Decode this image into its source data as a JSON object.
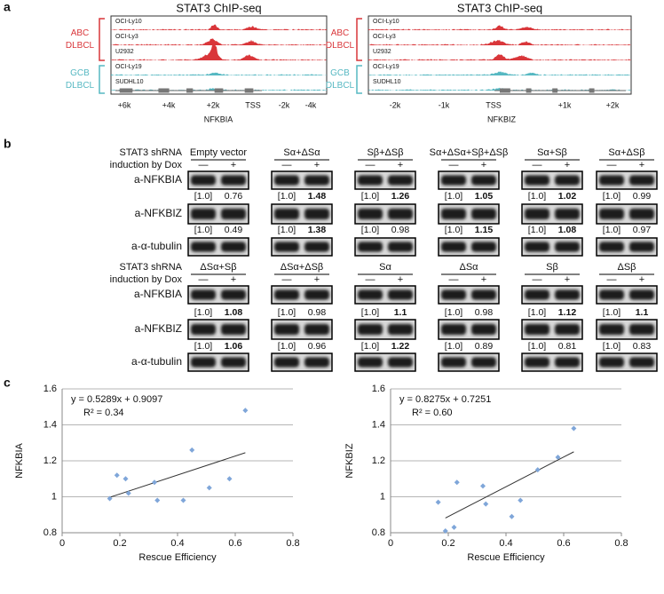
{
  "panel_labels": [
    "a",
    "b",
    "c"
  ],
  "chip_seq": [
    {
      "title": "STAT3 ChIP-seq",
      "tracks": [
        "OCI-Ly10",
        "OCI-Ly3",
        "U2932",
        "OCI-Ly19",
        "SUDHL10"
      ],
      "groups": [
        {
          "name": "ABC",
          "sub": "DLBCL"
        },
        {
          "name": "GCB",
          "sub": "DLBCL"
        }
      ],
      "axis_labels": [
        "+6k",
        "+4k",
        "+2k",
        "TSS",
        "-2k",
        "-4k"
      ],
      "gene": "NFKBIA"
    },
    {
      "title": "STAT3 ChIP-seq",
      "tracks": [
        "OCI-Ly10",
        "OCI-Ly3",
        "U2932",
        "OCI-Ly19",
        "SUDHL10"
      ],
      "groups": [
        {
          "name": "ABC",
          "sub": "DLBCL"
        },
        {
          "name": "GCB",
          "sub": "DLBCL"
        }
      ],
      "axis_labels": [
        "-2k",
        "-1k",
        "TSS",
        "+1k",
        "+2k"
      ],
      "gene": "NFKBIZ"
    }
  ],
  "western": {
    "row_header": [
      "STAT3 shRNA",
      "induction by Dox"
    ],
    "lanes": [
      "—",
      "+"
    ],
    "blocks": [
      {
        "groups": [
          "Empty vector",
          "Sα+ΔSα",
          "Sβ+ΔSβ",
          "Sα+ΔSα+Sβ+ΔSβ",
          "Sα+Sβ",
          "Sα+ΔSβ"
        ],
        "rows": [
          {
            "label": "a-NFKBIA",
            "values": [
              {
                "control": "[1.0]",
                "treated": "0.76",
                "bold": false
              },
              {
                "control": "[1.0]",
                "treated": "1.48",
                "bold": true
              },
              {
                "control": "[1.0]",
                "treated": "1.26",
                "bold": true
              },
              {
                "control": "[1.0]",
                "treated": "1.05",
                "bold": true
              },
              {
                "control": "[1.0]",
                "treated": "1.02",
                "bold": true
              },
              {
                "control": "[1.0]",
                "treated": "0.99",
                "bold": false
              }
            ]
          },
          {
            "label": "a-NFKBIZ",
            "values": [
              {
                "control": "[1.0]",
                "treated": "0.49",
                "bold": false
              },
              {
                "control": "[1.0]",
                "treated": "1.38",
                "bold": true
              },
              {
                "control": "[1.0]",
                "treated": "0.98",
                "bold": false
              },
              {
                "control": "[1.0]",
                "treated": "1.15",
                "bold": true
              },
              {
                "control": "[1.0]",
                "treated": "1.08",
                "bold": true
              },
              {
                "control": "[1.0]",
                "treated": "0.97",
                "bold": false
              }
            ]
          },
          {
            "label": "a-α-tubulin"
          }
        ]
      },
      {
        "groups": [
          "ΔSα+Sβ",
          "ΔSα+ΔSβ",
          "Sα",
          "ΔSα",
          "Sβ",
          "ΔSβ"
        ],
        "rows": [
          {
            "label": "a-NFKBIA",
            "values": [
              {
                "control": "[1.0]",
                "treated": "1.08",
                "bold": true
              },
              {
                "control": "[1.0]",
                "treated": "0.98",
                "bold": false
              },
              {
                "control": "[1.0]",
                "treated": "1.1",
                "bold": true
              },
              {
                "control": "[1.0]",
                "treated": "0.98",
                "bold": false
              },
              {
                "control": "[1.0]",
                "treated": "1.12",
                "bold": true
              },
              {
                "control": "[1.0]",
                "treated": "1.1",
                "bold": true
              }
            ]
          },
          {
            "label": "a-NFKBIZ",
            "values": [
              {
                "control": "[1.0]",
                "treated": "1.06",
                "bold": true
              },
              {
                "control": "[1.0]",
                "treated": "0.96",
                "bold": false
              },
              {
                "control": "[1.0]",
                "treated": "1.22",
                "bold": true
              },
              {
                "control": "[1.0]",
                "treated": "0.89",
                "bold": false
              },
              {
                "control": "[1.0]",
                "treated": "0.81",
                "bold": false
              },
              {
                "control": "[1.0]",
                "treated": "0.83",
                "bold": false
              }
            ]
          },
          {
            "label": "a-α-tubulin"
          }
        ]
      }
    ]
  },
  "chart_data": [
    {
      "type": "scatter",
      "ylabel": "NFKBIA",
      "xlabel": "Rescue Efficiency",
      "annotations": [
        "y = 0.5289x + 0.9097",
        "R² = 0.34"
      ],
      "x": [
        0.165,
        0.19,
        0.22,
        0.23,
        0.32,
        0.33,
        0.42,
        0.45,
        0.51,
        0.58,
        0.635
      ],
      "values": [
        0.99,
        1.12,
        1.1,
        1.02,
        1.08,
        0.98,
        0.98,
        1.26,
        1.05,
        1.1,
        1.48
      ],
      "trendline": {
        "x": [
          0.165,
          0.635
        ],
        "values": [
          0.997,
          1.245
        ]
      },
      "xlim": [
        0,
        0.8
      ],
      "xticks": [
        0,
        0.2,
        0.4,
        0.6,
        0.8
      ],
      "ylim": [
        0.8,
        1.6
      ],
      "yticks": [
        0.8,
        1,
        1.2,
        1.4,
        1.6
      ],
      "grid": true,
      "color": "#7fa6d9",
      "line_color": "#333333"
    },
    {
      "type": "scatter",
      "ylabel": "NFKBIZ",
      "xlabel": "Rescue Efficiency",
      "annotations": [
        "y = 0.8275x + 0.7251",
        "R² = 0.60"
      ],
      "x": [
        0.165,
        0.19,
        0.22,
        0.23,
        0.32,
        0.33,
        0.42,
        0.45,
        0.51,
        0.58,
        0.635
      ],
      "values": [
        0.97,
        0.81,
        0.83,
        1.08,
        1.06,
        0.96,
        0.89,
        0.98,
        1.15,
        1.22,
        1.38
      ],
      "trendline": {
        "x": [
          0.19,
          0.635
        ],
        "values": [
          0.882,
          1.25
        ]
      },
      "xlim": [
        0,
        0.8
      ],
      "xticks": [
        0,
        0.2,
        0.4,
        0.6,
        0.8
      ],
      "ylim": [
        0.8,
        1.6
      ],
      "yticks": [
        0.8,
        1,
        1.2,
        1.4,
        1.6
      ],
      "grid": true,
      "color": "#7fa6d9",
      "line_color": "#333333"
    }
  ]
}
